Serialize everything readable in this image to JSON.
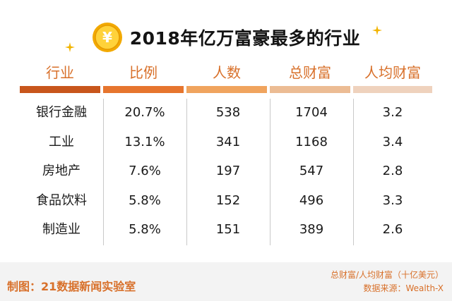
{
  "title": "2018年亿万富豪最多的行业",
  "chart_data": {
    "type": "table",
    "columns": [
      "行业",
      "比例",
      "人数",
      "总财富",
      "人均财富"
    ],
    "rows": [
      [
        "银行金融",
        "20.7%",
        "538",
        "1704",
        "3.2"
      ],
      [
        "工业",
        "13.1%",
        "341",
        "1168",
        "3.4"
      ],
      [
        "房地产",
        "7.6%",
        "197",
        "547",
        "2.8"
      ],
      [
        "食品饮料",
        "5.8%",
        "152",
        "496",
        "3.3"
      ],
      [
        "制造业",
        "5.8%",
        "151",
        "389",
        "2.6"
      ]
    ]
  },
  "colors": {
    "accent": "#d8702a",
    "header_bars": [
      "#c8561c",
      "#e6752e",
      "#f0a45e",
      "#ecbc94",
      "#efd2bd"
    ],
    "coin": "#f5b800"
  },
  "footer": {
    "credit": "制图：21数据新闻实验室",
    "unit_note": "总财富/人均财富（十亿美元）",
    "source": "数据来源：Wealth-X"
  },
  "icons": [
    "yuan-coin-icon",
    "sparkle-icon"
  ]
}
